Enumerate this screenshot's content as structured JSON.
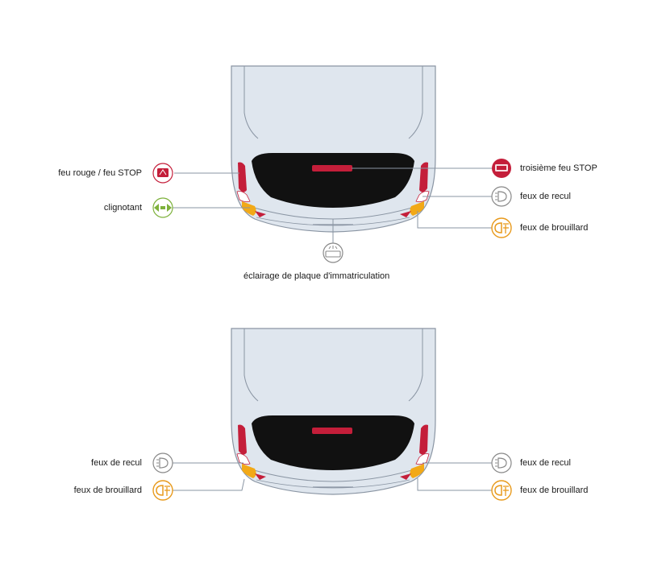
{
  "diagram_top": {
    "labels": {
      "feu_rouge_stop": "feu rouge / feu STOP",
      "clignotant": "clignotant",
      "troisieme_feu_stop": "troisième feu STOP",
      "feux_de_recul": "feux de recul",
      "feux_de_brouillard": "feux de brouillard",
      "eclairage_plaque": "éclairage de plaque d'immatriculation"
    }
  },
  "diagram_bottom": {
    "labels": {
      "feux_de_recul_left": "feux de recul",
      "feux_de_brouillard_left": "feux de brouillard",
      "feux_de_recul_right": "feux de recul",
      "feux_de_brouillard_right": "feux de brouillard"
    }
  },
  "colors": {
    "body": "#dfe6ee",
    "outline": "#8a95a3",
    "window": "#111111",
    "red": "#c41e3a",
    "amber": "#f2a917",
    "turn_green": "#7db13b",
    "icon_red": "#c41e3a",
    "icon_amber": "#e89a1c",
    "icon_grey": "#888888",
    "leader_line": "#8a95a3"
  },
  "icons": {
    "stop": "brake-lamp-icon",
    "turn": "turn-signal-icon",
    "third_stop": "third-brake-lamp-icon",
    "reverse": "reverse-lamp-icon",
    "fog": "rear-fog-lamp-icon",
    "plate": "license-plate-lamp-icon"
  }
}
